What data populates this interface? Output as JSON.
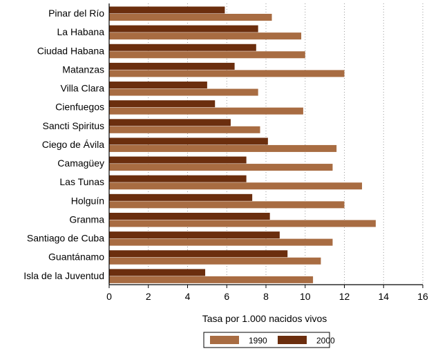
{
  "chart_data": {
    "type": "bar",
    "orientation": "horizontal",
    "categories": [
      "Pinar del Río",
      "La Habana",
      "Ciudad Habana",
      "Matanzas",
      "Villa Clara",
      "Cienfuegos",
      "Sancti Spiritus",
      "Ciego de Ávila",
      "Camagüey",
      "Las Tunas",
      "Holguín",
      "Granma",
      "Santiago de Cuba",
      "Guantánamo",
      "Isla de la Juventud"
    ],
    "series": [
      {
        "name": "2000",
        "color": "#6b2e0e",
        "values": [
          5.9,
          7.6,
          7.5,
          6.4,
          5.0,
          5.4,
          6.2,
          8.1,
          7.0,
          7.0,
          7.3,
          8.2,
          8.7,
          9.1,
          4.9
        ]
      },
      {
        "name": "1990",
        "color": "#a86c42",
        "values": [
          8.3,
          9.8,
          10.0,
          12.0,
          7.6,
          9.9,
          7.7,
          11.6,
          11.4,
          12.9,
          12.0,
          13.6,
          11.4,
          10.8,
          10.4
        ]
      }
    ],
    "xlabel": "Tasa por 1.000 nacidos vivos",
    "xlim": [
      0,
      16
    ],
    "xticks": [
      "0",
      "2",
      "4",
      "6",
      "8",
      "10",
      "12",
      "14",
      "16"
    ],
    "grid": "vertical dotted",
    "legend": {
      "position": "bottom",
      "order": [
        "1990",
        "2000"
      ]
    }
  }
}
